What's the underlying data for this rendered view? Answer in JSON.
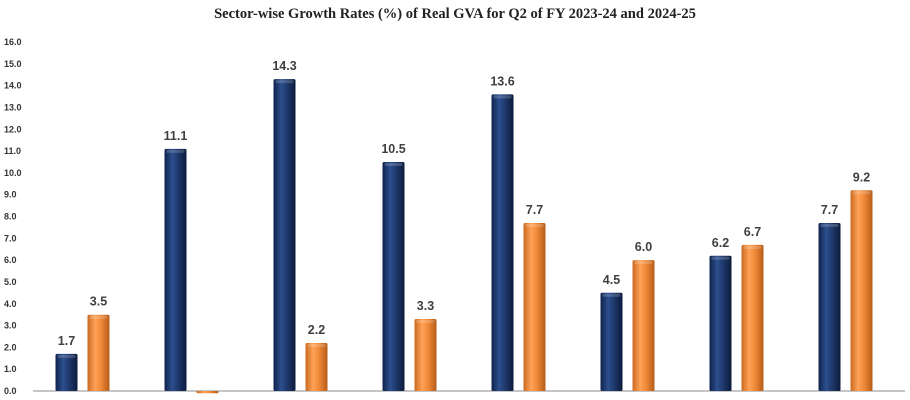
{
  "chart_data": {
    "type": "bar",
    "title": "Sector-wise Growth Rates (%) of Real GVA for Q2 of FY 2023-24 and 2024-25",
    "xlabel": "",
    "ylabel": "",
    "ylim": [
      0,
      16
    ],
    "yticks": [
      "0.0",
      "1.0",
      "2.0",
      "3.0",
      "4.0",
      "5.0",
      "6.0",
      "7.0",
      "8.0",
      "9.0",
      "10.0",
      "11.0",
      "12.0",
      "13.0",
      "14.0",
      "15.0",
      "16.0"
    ],
    "grid": false,
    "categories": [
      "",
      "",
      "",
      "",
      "",
      "",
      "",
      ""
    ],
    "series": [
      {
        "color": "#1f3a6e",
        "values": [
          1.7,
          11.1,
          14.3,
          10.5,
          13.6,
          4.5,
          6.2,
          7.7
        ],
        "labels": [
          "1.7",
          "11.1",
          "14.3",
          "10.5",
          "13.6",
          "4.5",
          "6.2",
          "7.7"
        ]
      },
      {
        "color": "#f08a3a",
        "values": [
          3.5,
          -0.1,
          2.2,
          3.3,
          7.7,
          6.0,
          6.7,
          9.2
        ],
        "labels": [
          "3.5",
          "",
          "2.2",
          "3.3",
          "7.7",
          "6.0",
          "6.7",
          "9.2"
        ]
      }
    ]
  }
}
